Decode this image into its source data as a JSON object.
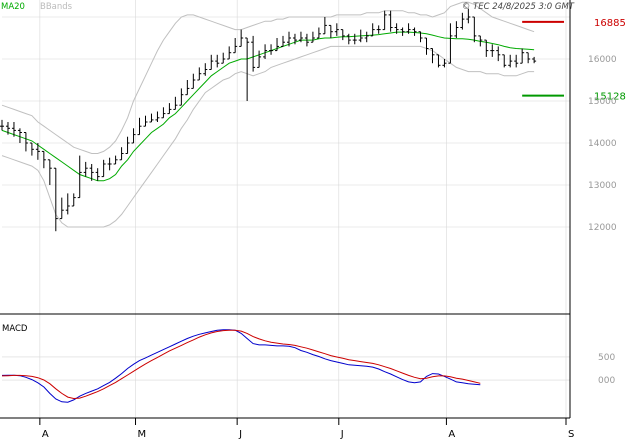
{
  "header": {
    "ma_label": "MA20",
    "bbands_label": "BBands",
    "copyright": "© TEC 24/8/2025 3:0 GMT"
  },
  "macd_label": "MACD",
  "colors": {
    "background": "#ffffff",
    "ma": "#00aa00",
    "bbands": "#c0c0c0",
    "ohlc": "#000000",
    "grid": "#d8d8d8",
    "macd": "#0000cc",
    "signal": "#cc0000",
    "resistance": "#cc0000",
    "support": "#009900",
    "axis_text": "#999999"
  },
  "chart_data": [
    {
      "type": "ohlc",
      "panel": "price",
      "ylim": [
        10000,
        17000
      ],
      "yticks": [
        {
          "value": 12000,
          "label": "12000"
        },
        {
          "value": 13000,
          "label": "13000"
        },
        {
          "value": 14000,
          "label": "14000"
        },
        {
          "value": 15000,
          "label": "15000"
        },
        {
          "value": 16000,
          "label": "16000"
        }
      ],
      "xlim": [
        0,
        95
      ],
      "month_ticks": [
        {
          "x": 7,
          "label": "A"
        },
        {
          "x": 23,
          "label": "M"
        },
        {
          "x": 40,
          "label": "J"
        },
        {
          "x": 57,
          "label": "J"
        },
        {
          "x": 75,
          "label": "A"
        },
        {
          "x": 95,
          "label": "S"
        }
      ],
      "levels": [
        {
          "name": "resistance",
          "value": 16885,
          "label": "16885",
          "x": [
            87,
            94
          ]
        },
        {
          "name": "support",
          "value": 15128,
          "label": "15128",
          "x": [
            87,
            94
          ]
        }
      ],
      "close": [
        14400,
        14350,
        14300,
        14250,
        14000,
        13850,
        13800,
        13600,
        13400,
        12200,
        12400,
        12500,
        12700,
        13300,
        13400,
        13300,
        13200,
        13500,
        13500,
        13600,
        13750,
        14000,
        14200,
        14400,
        14500,
        14550,
        14600,
        14700,
        14800,
        14900,
        15150,
        15300,
        15500,
        15650,
        15750,
        15950,
        15900,
        16000,
        16150,
        16300,
        16500,
        16400,
        15800,
        16050,
        16200,
        16200,
        16300,
        16400,
        16500,
        16450,
        16500,
        16400,
        16500,
        16600,
        16800,
        16650,
        16700,
        16550,
        16450,
        16450,
        16500,
        16550,
        16700,
        16700,
        17050,
        16750,
        16700,
        16650,
        16700,
        16650,
        16500,
        16250,
        16100,
        15850,
        15900,
        16550,
        16750,
        16950,
        17000,
        16550,
        16450,
        16200,
        16200,
        16100,
        15850,
        15950,
        15900,
        16150,
        16000,
        15950
      ],
      "high": [
        14550,
        14500,
        14500,
        14350,
        14100,
        14000,
        14000,
        13700,
        13600,
        12500,
        12700,
        12800,
        12800,
        13700,
        13550,
        13500,
        13400,
        13600,
        13650,
        13700,
        13900,
        14150,
        14350,
        14600,
        14650,
        14700,
        14750,
        14850,
        14950,
        15100,
        15300,
        15500,
        15650,
        15800,
        15900,
        16100,
        16100,
        16150,
        16300,
        16500,
        16700,
        16500,
        16550,
        16200,
        16350,
        16350,
        16500,
        16550,
        16650,
        16600,
        16650,
        16600,
        16650,
        16750,
        17000,
        16800,
        16850,
        16700,
        16600,
        16600,
        16700,
        16650,
        16850,
        16800,
        17150,
        17150,
        16850,
        16750,
        16850,
        16750,
        16650,
        16500,
        16250,
        16100,
        16000,
        16850,
        16900,
        17100,
        17200,
        16900,
        16550,
        16400,
        16350,
        16300,
        16100,
        16100,
        16100,
        16250,
        16150,
        16050
      ],
      "low": [
        14300,
        14200,
        14150,
        14000,
        13800,
        13700,
        13600,
        13400,
        13000,
        11900,
        12200,
        12300,
        12500,
        13200,
        13200,
        13100,
        13100,
        13300,
        13350,
        13500,
        13600,
        13900,
        14100,
        14300,
        14400,
        14500,
        14500,
        14600,
        14700,
        14800,
        15000,
        15200,
        15400,
        15500,
        15600,
        15800,
        15800,
        15900,
        16000,
        16200,
        16300,
        15000,
        15700,
        15900,
        16000,
        16100,
        16200,
        16300,
        16300,
        16350,
        16400,
        16300,
        16400,
        16500,
        16600,
        16500,
        16550,
        16450,
        16350,
        16350,
        16400,
        16400,
        16550,
        16600,
        16850,
        16650,
        16600,
        16550,
        16600,
        16550,
        16400,
        16100,
        15900,
        15800,
        15800,
        15900,
        16500,
        16700,
        16850,
        16400,
        16300,
        16050,
        16050,
        15950,
        15800,
        15800,
        15800,
        15950,
        15900,
        15900
      ],
      "ma20": [
        14300,
        14250,
        14200,
        14150,
        14100,
        14050,
        13950,
        13850,
        13750,
        13650,
        13550,
        13450,
        13350,
        13250,
        13200,
        13150,
        13100,
        13100,
        13150,
        13250,
        13450,
        13600,
        13800,
        13950,
        14100,
        14250,
        14350,
        14450,
        14600,
        14700,
        14850,
        15000,
        15150,
        15300,
        15450,
        15600,
        15700,
        15800,
        15900,
        15950,
        16000,
        16000,
        16050,
        16100,
        16150,
        16200,
        16250,
        16300,
        16350,
        16400,
        16450,
        16450,
        16450,
        16480,
        16500,
        16500,
        16520,
        16530,
        16530,
        16540,
        16550,
        16560,
        16570,
        16580,
        16600,
        16620,
        16640,
        16640,
        16640,
        16630,
        16620,
        16600,
        16570,
        16530,
        16500,
        16490,
        16480,
        16480,
        16470,
        16450,
        16420,
        16400,
        16370,
        16340,
        16300,
        16270,
        16250,
        16240,
        16230,
        16220
      ],
      "bb_upper": [
        14900,
        14850,
        14800,
        14750,
        14700,
        14650,
        14500,
        14400,
        14300,
        14200,
        14100,
        14000,
        13900,
        13850,
        13800,
        13750,
        13750,
        13800,
        13900,
        14050,
        14300,
        14600,
        15000,
        15300,
        15600,
        15900,
        16200,
        16450,
        16650,
        16850,
        17000,
        17050,
        17050,
        17000,
        16950,
        16900,
        16850,
        16800,
        16750,
        16700,
        16700,
        16750,
        16800,
        16850,
        16900,
        16900,
        16950,
        16950,
        17000,
        17000,
        17000,
        17000,
        17000,
        17000,
        17000,
        17000,
        17050,
        17050,
        17050,
        17050,
        17050,
        17100,
        17100,
        17100,
        17150,
        17150,
        17150,
        17150,
        17100,
        17100,
        17050,
        17050,
        17000,
        17050,
        17100,
        17250,
        17300,
        17350,
        17350,
        17300,
        17200,
        17100,
        17000,
        16950,
        16900,
        16850,
        16800,
        16750,
        16700,
        16650
      ],
      "bb_lower": [
        13700,
        13650,
        13600,
        13550,
        13500,
        13450,
        13350,
        13100,
        12700,
        12300,
        12100,
        12000,
        12000,
        12000,
        12000,
        12000,
        12000,
        12000,
        12050,
        12150,
        12300,
        12500,
        12700,
        12900,
        13100,
        13300,
        13500,
        13700,
        13900,
        14100,
        14350,
        14550,
        14800,
        15000,
        15200,
        15300,
        15400,
        15500,
        15550,
        15650,
        15700,
        15650,
        15600,
        15650,
        15700,
        15800,
        15850,
        15900,
        15950,
        16000,
        16050,
        16100,
        16150,
        16200,
        16250,
        16300,
        16300,
        16300,
        16300,
        16300,
        16300,
        16300,
        16300,
        16300,
        16300,
        16300,
        16300,
        16300,
        16300,
        16300,
        16300,
        16250,
        16200,
        16100,
        16000,
        15900,
        15800,
        15750,
        15700,
        15700,
        15700,
        15650,
        15650,
        15650,
        15600,
        15600,
        15600,
        15650,
        15700,
        15700
      ]
    },
    {
      "type": "line",
      "panel": "macd",
      "ylim": [
        -800,
        1300
      ],
      "yticks": [
        {
          "value": 0,
          "label": "000"
        },
        {
          "value": 500,
          "label": "500"
        }
      ],
      "series": [
        {
          "name": "MACD",
          "values": [
            100,
            105,
            105,
            95,
            60,
            10,
            -60,
            -150,
            -290,
            -410,
            -470,
            -480,
            -430,
            -350,
            -290,
            -240,
            -190,
            -120,
            -50,
            40,
            140,
            250,
            340,
            420,
            480,
            540,
            600,
            660,
            720,
            780,
            840,
            900,
            950,
            990,
            1020,
            1050,
            1080,
            1090,
            1090,
            1080,
            1010,
            900,
            790,
            760,
            760,
            750,
            740,
            740,
            730,
            700,
            640,
            600,
            550,
            510,
            460,
            420,
            390,
            360,
            330,
            320,
            310,
            300,
            280,
            240,
            180,
            130,
            70,
            10,
            -40,
            -60,
            -40,
            80,
            140,
            130,
            80,
            20,
            -40,
            -60,
            -80,
            -90,
            -100
          ]
        },
        {
          "name": "Signal",
          "values": [
            90,
            95,
            100,
            100,
            95,
            80,
            50,
            0,
            -80,
            -190,
            -290,
            -370,
            -400,
            -390,
            -350,
            -300,
            -250,
            -190,
            -120,
            -50,
            30,
            110,
            190,
            270,
            350,
            420,
            490,
            560,
            630,
            690,
            750,
            810,
            870,
            930,
            980,
            1020,
            1050,
            1070,
            1080,
            1080,
            1060,
            1010,
            940,
            890,
            850,
            820,
            800,
            780,
            770,
            750,
            720,
            690,
            650,
            610,
            570,
            530,
            500,
            470,
            440,
            420,
            400,
            380,
            360,
            330,
            290,
            250,
            200,
            150,
            100,
            60,
            30,
            40,
            70,
            90,
            90,
            70,
            40,
            20,
            -10,
            -40,
            -70
          ]
        }
      ]
    }
  ]
}
